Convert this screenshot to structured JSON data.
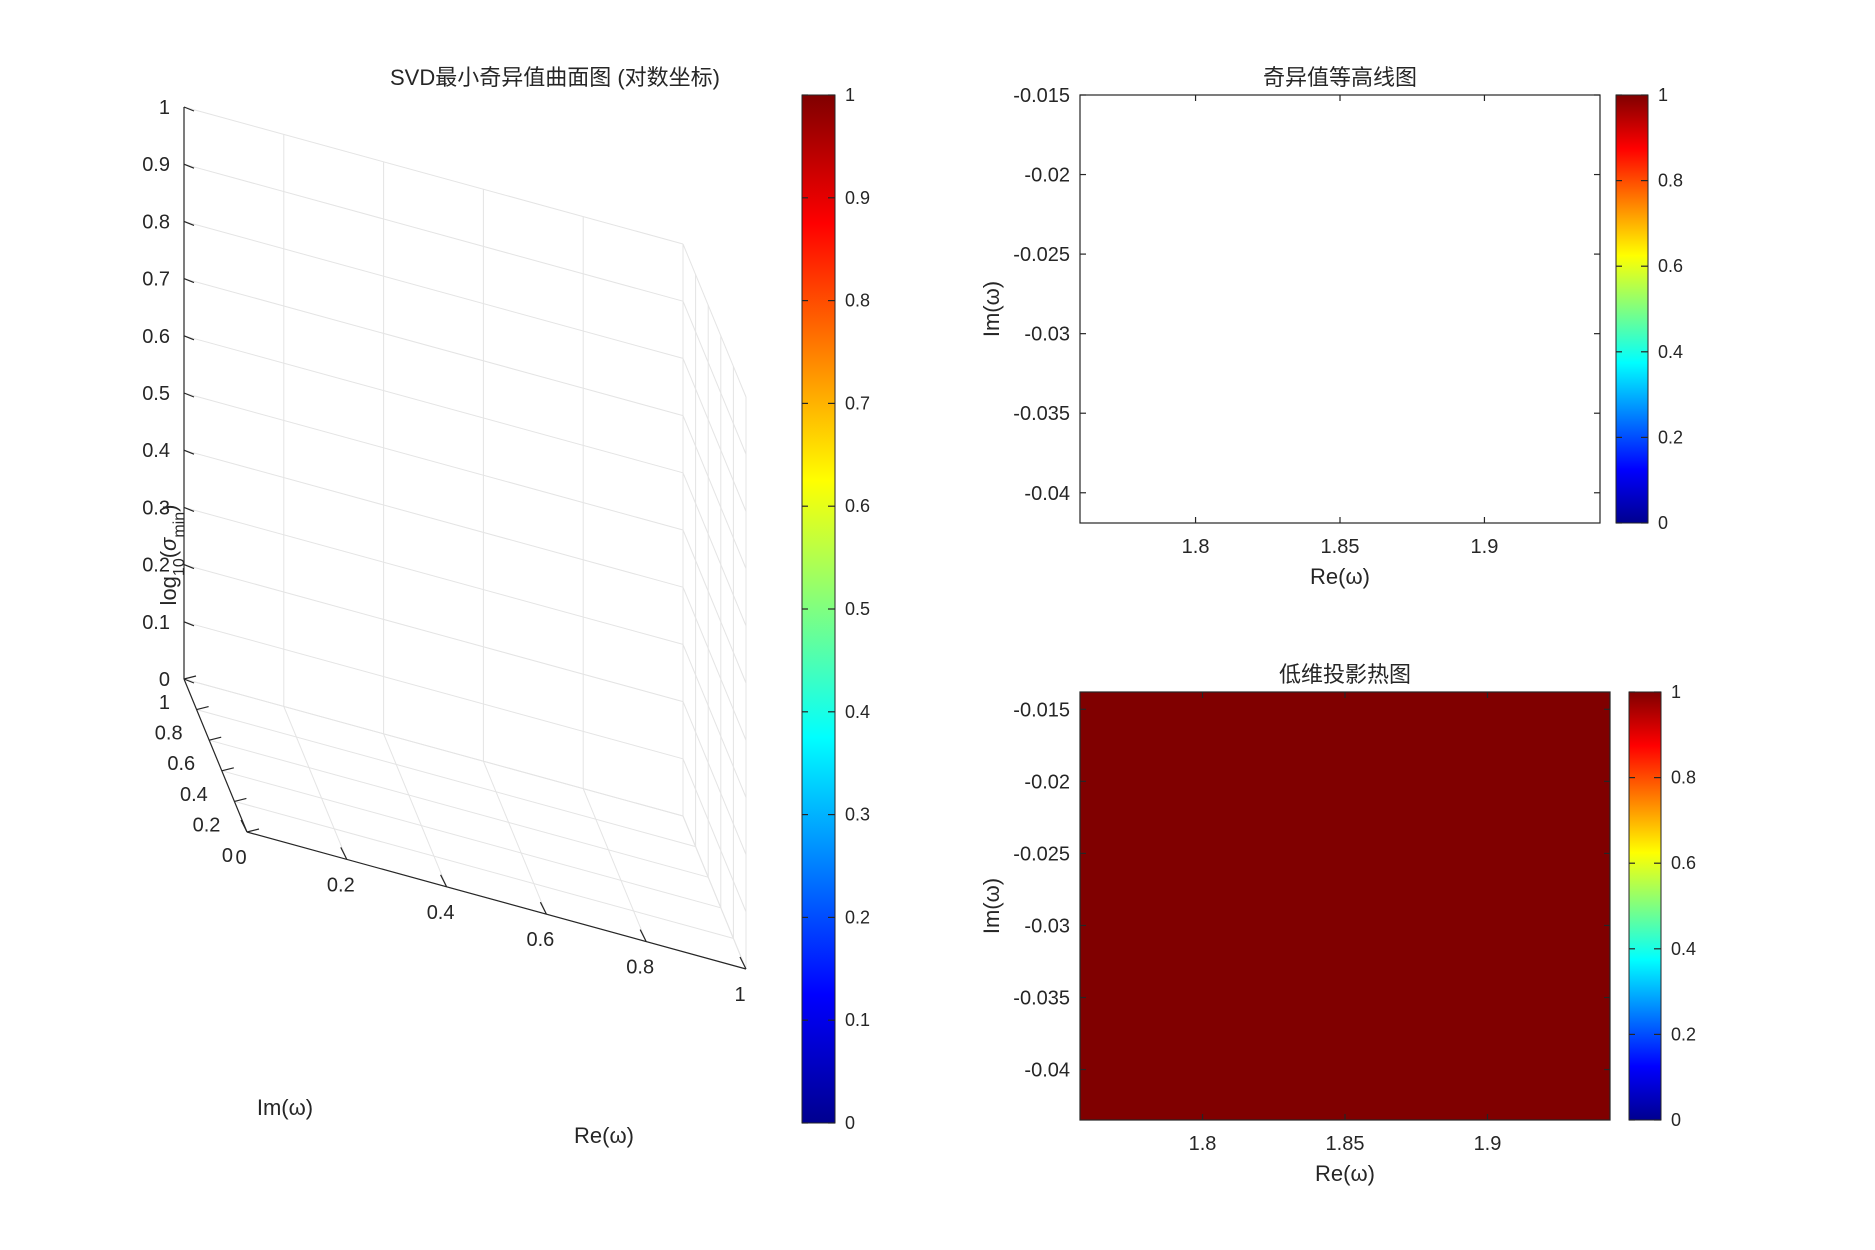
{
  "chart_data": [
    {
      "type": "surface3d",
      "title": "SVD最小奇异值曲面图 (对数坐标)",
      "xlabel": "Re(ω)",
      "ylabel": "Im(ω)",
      "zlabel_base": "log",
      "zlabel_sub": "10",
      "zlabel_sym": "σ",
      "zlabel_sym_sub": "min",
      "xlim": [
        0,
        1
      ],
      "ylim": [
        0,
        1
      ],
      "zlim": [
        0,
        1
      ],
      "xticks": [
        "0",
        "0.2",
        "0.4",
        "0.6",
        "0.8",
        "1"
      ],
      "yticks": [
        "0",
        "0.2",
        "0.4",
        "0.6",
        "0.8",
        "1"
      ],
      "zticks": [
        "0",
        "0.1",
        "0.2",
        "0.3",
        "0.4",
        "0.5",
        "0.6",
        "0.7",
        "0.8",
        "0.9",
        "1"
      ],
      "grid": true,
      "data": [],
      "colorbar": {
        "colormap": "jet",
        "range": [
          0,
          1
        ],
        "ticks": [
          "0",
          "0.1",
          "0.2",
          "0.3",
          "0.4",
          "0.5",
          "0.6",
          "0.7",
          "0.8",
          "0.9",
          "1"
        ]
      }
    },
    {
      "type": "contour",
      "title": "奇异值等高线图",
      "xlabel": "Re(ω)",
      "ylabel": "Im(ω)",
      "xlim": [
        1.76,
        1.94
      ],
      "ylim": [
        -0.0419,
        -0.015
      ],
      "xticks": [
        "1.8",
        "1.85",
        "1.9"
      ],
      "yticks": [
        "-0.015",
        "-0.02",
        "-0.025",
        "-0.03",
        "-0.035",
        "-0.04"
      ],
      "data": [],
      "colorbar": {
        "colormap": "jet",
        "range": [
          0,
          1
        ],
        "ticks": [
          "0",
          "0.2",
          "0.4",
          "0.6",
          "0.8",
          "1"
        ]
      }
    },
    {
      "type": "heatmap",
      "title": "低维投影热图",
      "xlabel": "Re(ω)",
      "ylabel": "Im(ω)",
      "xlim": [
        1.757,
        1.943
      ],
      "ylim": [
        -0.0435,
        -0.0138
      ],
      "xticks": [
        "1.8",
        "1.85",
        "1.9"
      ],
      "yticks": [
        "-0.015",
        "-0.02",
        "-0.025",
        "-0.03",
        "-0.035",
        "-0.04"
      ],
      "fill_value": 1,
      "fill_color": "#800000",
      "colorbar": {
        "colormap": "jet",
        "range": [
          0,
          1
        ],
        "ticks": [
          "0",
          "0.2",
          "0.4",
          "0.6",
          "0.8",
          "1"
        ]
      }
    }
  ]
}
